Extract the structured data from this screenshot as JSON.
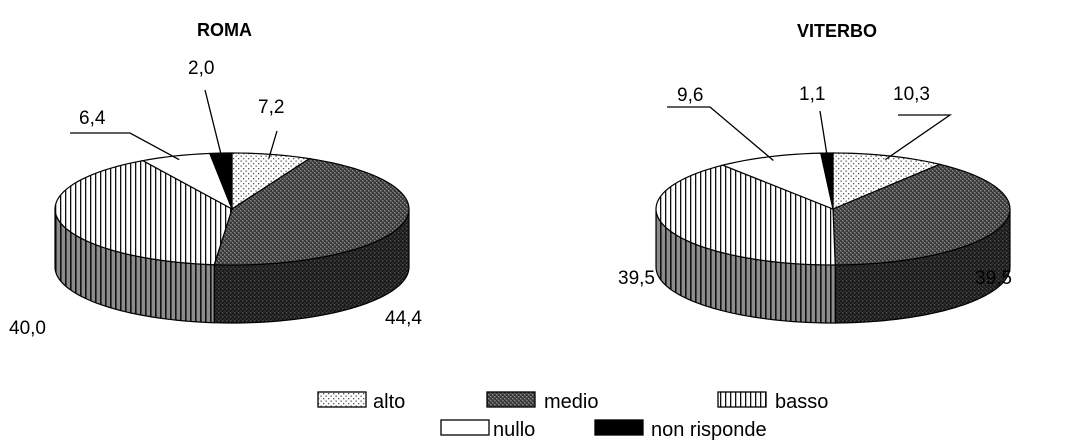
{
  "chart_data": [
    {
      "type": "pie",
      "title": "ROMA",
      "categories": [
        "alto",
        "medio",
        "basso",
        "nullo",
        "non risponde"
      ],
      "values": [
        7.2,
        44.4,
        40.0,
        6.4,
        2.0
      ],
      "labels": [
        "7,2",
        "44,4",
        "40,0",
        "6,4",
        "2,0"
      ]
    },
    {
      "type": "pie",
      "title": "VITERBO",
      "categories": [
        "alto",
        "medio",
        "basso",
        "nullo",
        "non risponde"
      ],
      "values": [
        10.3,
        39.5,
        39.5,
        9.6,
        1.1
      ],
      "labels": [
        "10,3",
        "39,5",
        "39,5",
        "9,6",
        "1,1"
      ]
    }
  ],
  "legend": {
    "placement": "bottom",
    "items": [
      {
        "label": "alto",
        "pattern": "dots"
      },
      {
        "label": "medio",
        "pattern": "crosshatch"
      },
      {
        "label": "basso",
        "pattern": "vertical-lines"
      },
      {
        "label": "nullo",
        "pattern": "white"
      },
      {
        "label": "non risponde",
        "pattern": "black"
      }
    ]
  }
}
